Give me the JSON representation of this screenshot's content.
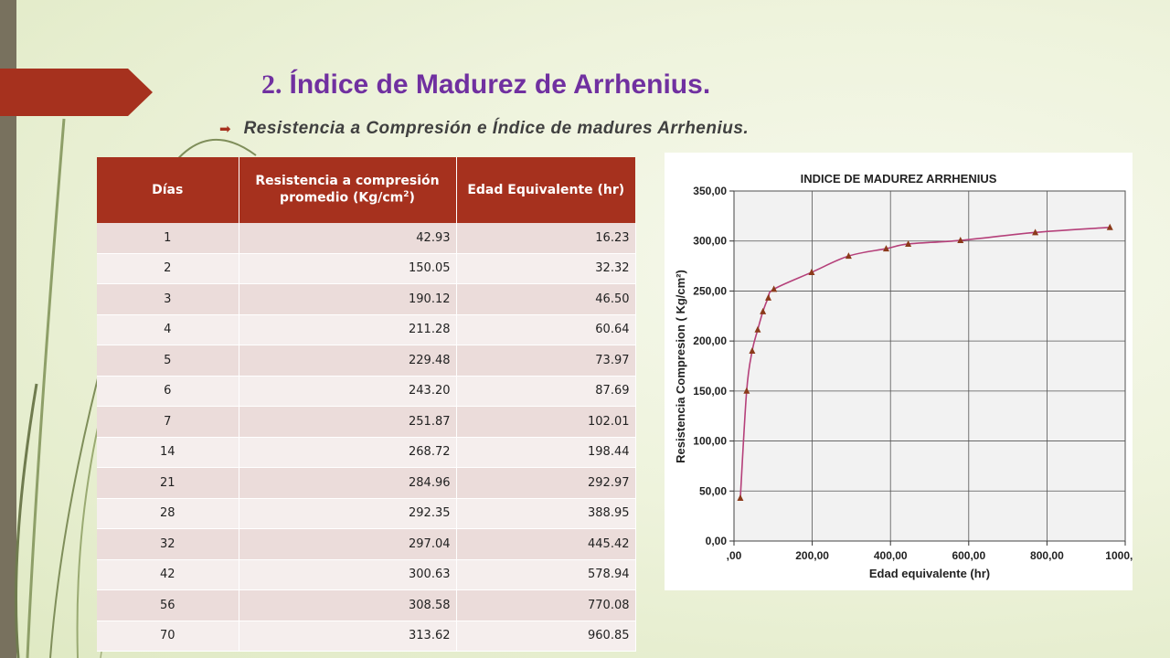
{
  "slide": {
    "title_number": "2.",
    "title_text": "Índice de Madurez de Arrhenius.",
    "bullet": "Resistencia a Compresión e Índice de madures Arrhenius."
  },
  "table": {
    "headers": {
      "dias": "Días",
      "resistencia_main": "Resistencia a compresión promedio (Kg/cm",
      "resistencia_sup": "2",
      "resistencia_close": ")",
      "edad": "Edad Equivalente (hr)"
    },
    "rows": [
      [
        "1",
        "42.93",
        "16.23"
      ],
      [
        "2",
        "150.05",
        "32.32"
      ],
      [
        "3",
        "190.12",
        "46.50"
      ],
      [
        "4",
        "211.28",
        "60.64"
      ],
      [
        "5",
        "229.48",
        "73.97"
      ],
      [
        "6",
        "243.20",
        "87.69"
      ],
      [
        "7",
        "251.87",
        "102.01"
      ],
      [
        "14",
        "268.72",
        "198.44"
      ],
      [
        "21",
        "284.96",
        "292.97"
      ],
      [
        "28",
        "292.35",
        "388.95"
      ],
      [
        "32",
        "297.04",
        "445.42"
      ],
      [
        "42",
        "300.63",
        "578.94"
      ],
      [
        "56",
        "308.58",
        "770.08"
      ],
      [
        "70",
        "313.62",
        "960.85"
      ]
    ]
  },
  "chart_data": {
    "type": "line",
    "title": "INDICE DE MADUREZ ARRHENIUS",
    "xlabel": "Edad equivalente (hr)",
    "ylabel": "Resistencia Compresion ( Kg/cm²)",
    "xlim": [
      0,
      1000
    ],
    "ylim": [
      0,
      350
    ],
    "xticks": [
      ",00",
      "200,00",
      "400,00",
      "600,00",
      "800,00",
      "1000,00"
    ],
    "yticks": [
      "0,00",
      "50,00",
      "100,00",
      "150,00",
      "200,00",
      "250,00",
      "300,00",
      "350,00"
    ],
    "grid": true,
    "x": [
      16.23,
      32.32,
      46.5,
      60.64,
      73.97,
      87.69,
      102.01,
      198.44,
      292.97,
      388.95,
      445.42,
      578.94,
      770.08,
      960.85
    ],
    "y": [
      42.93,
      150.05,
      190.12,
      211.28,
      229.48,
      243.2,
      251.87,
      268.72,
      284.96,
      292.35,
      297.04,
      300.63,
      308.58,
      313.62
    ],
    "line_color": "#b5407a",
    "marker_color": "#8b3a1a",
    "marker": "triangle"
  }
}
